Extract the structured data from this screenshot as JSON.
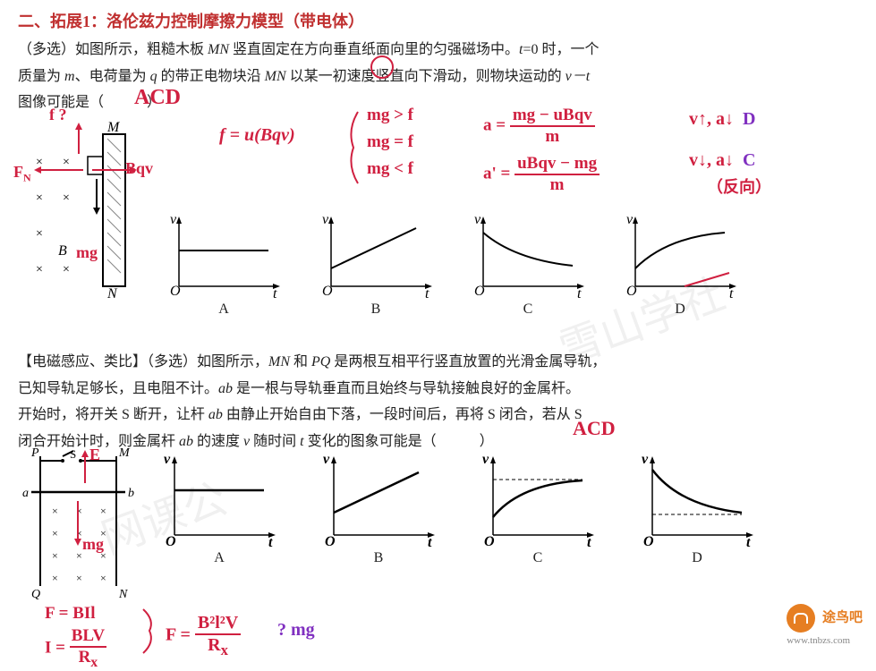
{
  "section_title": "二、拓展1：洛伦兹力控制摩擦力模型（带电体）",
  "problem1": {
    "line1": "（多选）如图所示，粗糙木板 <span class='italic'>MN</span> 竖直固定在方向垂直纸面向里的匀强磁场中。<span class='italic'>t</span>=0 时，一个",
    "line2": "质量为 <span class='italic'>m</span>、电荷量为 <span class='italic'>q</span> 的带正电物块沿 <span class='italic'>MN</span> 以某一初速度竖直向下滑动，则物块运动的 <span class='italic'>v－t</span>",
    "line3": "图像可能是（　　　）",
    "answer": "ACD"
  },
  "problem2": {
    "title": "【电磁感应、类比】（多选）如图所示，<span class='italic'>MN</span> 和 <span class='italic'>PQ</span> 是两根互相平行竖直放置的光滑金属导轨，",
    "line2": "已知导轨足够长，且电阻不计。<span class='italic'>ab</span> 是一根与导轨垂直而且始终与导轨接触良好的金属杆。",
    "line3": "开始时，将开关 S 断开，让杆 <span class='italic'>ab</span> 由静止开始自由下落，一段时间后，再将 S 闭合，若从 S",
    "line4": "闭合开始计时，则金属杆 <span class='italic'>ab</span> 的速度 <span class='italic'>v</span> 随时间 <span class='italic'>t</span> 变化的图象可能是（　　　）",
    "answer": "ACD"
  },
  "handwritten": {
    "f_question": "f ?",
    "fn": "F_N",
    "bqv": "Bqv",
    "mg": "mg",
    "f_eq": "f = u(Bqv)",
    "cond1": "mg > f",
    "cond2": "mg = f",
    "cond3": "mg < f",
    "a_eq": "a = (mg − uBqv) / m",
    "a2_eq": "a' = (uBqv − mg) / m",
    "d_note": "v↑, a↓  D",
    "c_note": "v↓, a↓  C",
    "c_sub": "（反向）",
    "F_bil": "F = BIl",
    "I_eq": "I = BLV / R_x",
    "F_eq2": "F = B²l²V / R_x",
    "mg_q": "? mg",
    "E_arrow": "E",
    "mg2": "mg"
  },
  "graph_labels": [
    "A",
    "B",
    "C",
    "D"
  ],
  "axis": {
    "x": "t",
    "y": "v",
    "origin": "O"
  },
  "colors": {
    "text": "#222222",
    "red": "#d02040",
    "purple": "#8030c0",
    "title": "#c03030",
    "orange": "#e67e22"
  },
  "watermarks": {
    "w1": "雪山学社",
    "w2": "网课公"
  },
  "logo_text": "途鸟吧",
  "logo_url": "www.tnbzs.com"
}
